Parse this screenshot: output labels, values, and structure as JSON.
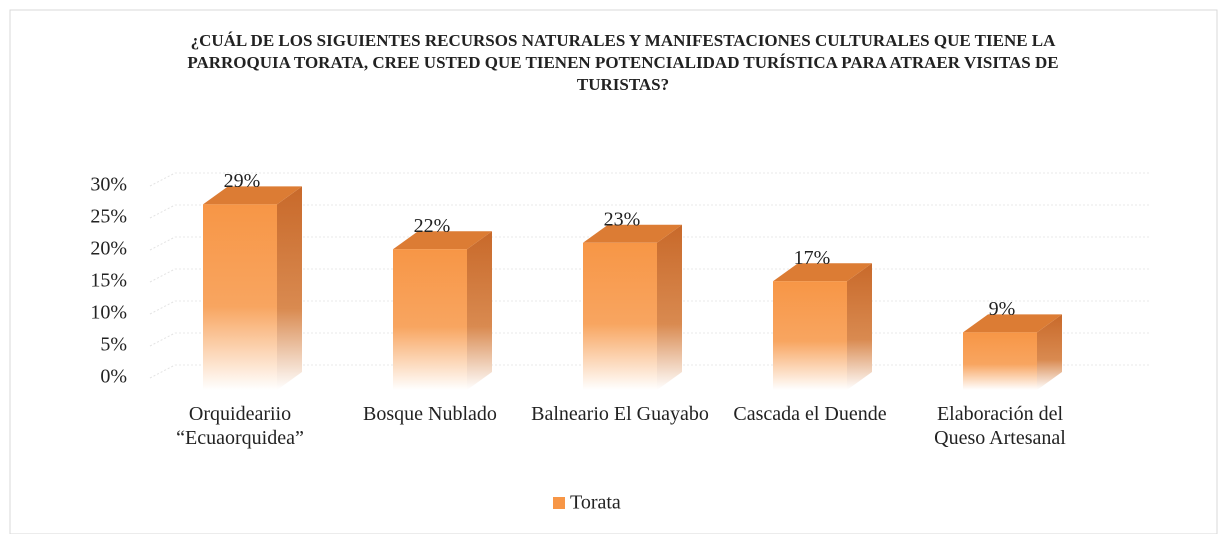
{
  "chart_data": {
    "type": "bar3d",
    "title": "¿CUÁL DE LOS SIGUIENTES RECURSOS NATURALES Y MANIFESTACIONES CULTURALES QUE TIENE LA PARROQUIA TORATA, CREE USTED QUE TIENEN POTENCIALIDAD TURÍSTICA PARA ATRAER VISITAS DE TURISTAS?",
    "categories": [
      "Orquideariio “Ecuaorquidea”",
      "Bosque Nublado",
      "Balneario El Guayabo",
      "Cascada el Duende",
      "Elaboración del Queso Artesanal"
    ],
    "series": [
      {
        "name": "Torata",
        "color": "#f79646",
        "values": [
          29,
          22,
          23,
          17,
          9
        ],
        "value_labels": [
          "29%",
          "22%",
          "23%",
          "17%",
          "9%"
        ]
      }
    ],
    "ylim": [
      0,
      30
    ],
    "yticks": [
      {
        "value": 0,
        "label": "0%"
      },
      {
        "value": 5,
        "label": "5%"
      },
      {
        "value": 10,
        "label": "10%"
      },
      {
        "value": 15,
        "label": "15%"
      },
      {
        "value": 20,
        "label": "20%"
      },
      {
        "value": 25,
        "label": "25%"
      },
      {
        "value": 30,
        "label": "30%"
      }
    ],
    "grid": true,
    "legend": "bottom"
  }
}
